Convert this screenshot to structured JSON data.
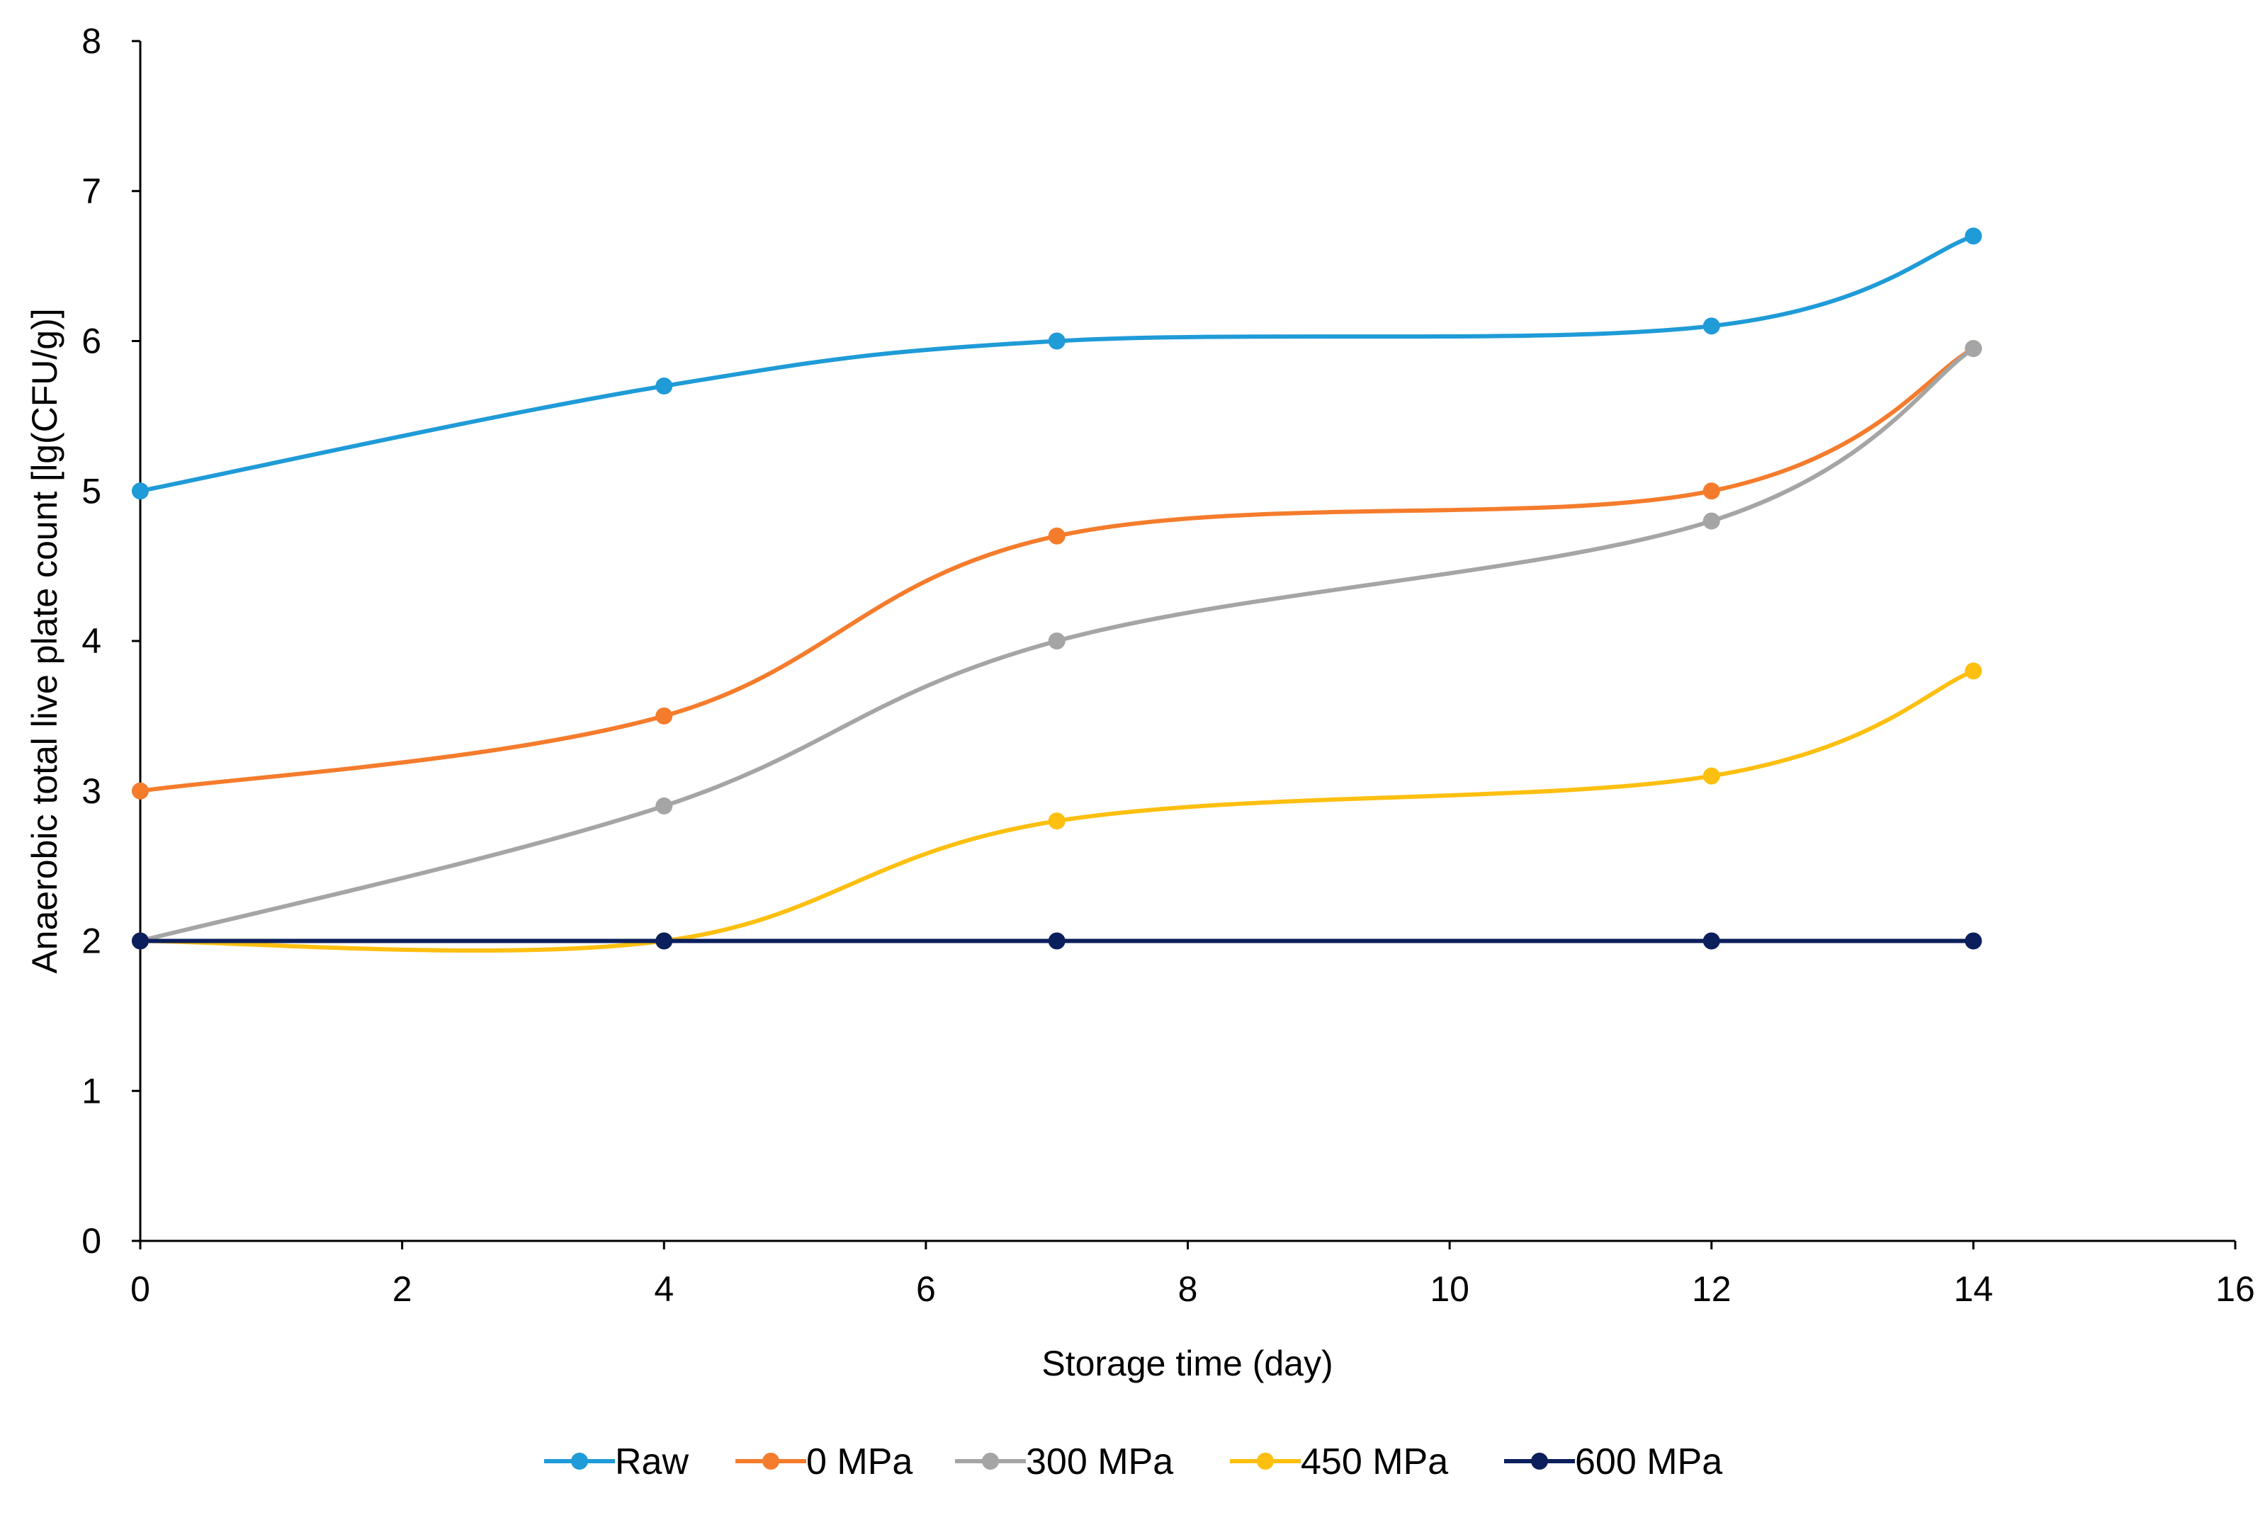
{
  "chart_data": {
    "type": "line",
    "smooth": true,
    "title": "",
    "xlabel": "Storage time (day)",
    "ylabel": "Anaerobic total live plate count [lg(CFU/g)]",
    "xlim": [
      0,
      16
    ],
    "ylim": [
      0,
      8
    ],
    "xticks": [
      "0",
      "2",
      "4",
      "6",
      "8",
      "10",
      "12",
      "14",
      "16"
    ],
    "yticks": [
      "0",
      "1",
      "2",
      "3",
      "4",
      "5",
      "6",
      "7",
      "8"
    ],
    "grid": false,
    "legend_position": "bottom",
    "x": [
      0,
      4,
      7,
      12,
      14
    ],
    "series": [
      {
        "name": "Raw",
        "color": "#1f9bd7",
        "values": [
          5.0,
          5.7,
          6.0,
          6.1,
          6.7
        ]
      },
      {
        "name": "0 MPa",
        "color": "#f47c2c",
        "values": [
          3.0,
          3.5,
          4.7,
          5.0,
          5.95
        ]
      },
      {
        "name": "300 MPa",
        "color": "#a5a5a5",
        "values": [
          2.0,
          2.9,
          4.0,
          4.8,
          5.95
        ]
      },
      {
        "name": "450 MPa",
        "color": "#fdbf10",
        "values": [
          2.0,
          2.0,
          2.8,
          3.1,
          3.8
        ]
      },
      {
        "name": "600 MPa",
        "color": "#0b1f5c",
        "values": [
          2.0,
          2.0,
          2.0,
          2.0,
          2.0
        ]
      }
    ]
  }
}
